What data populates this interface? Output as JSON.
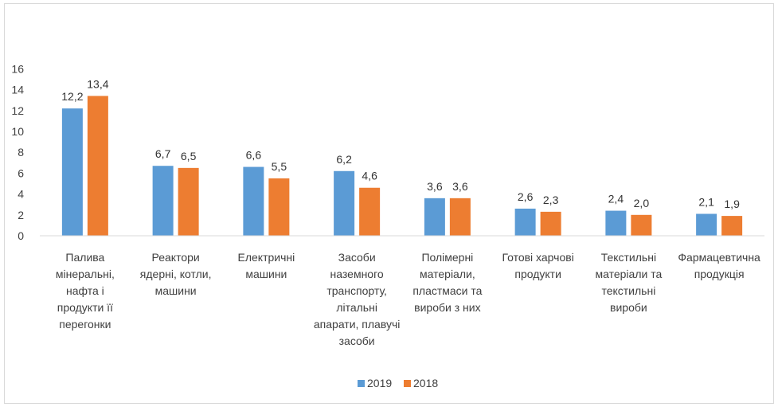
{
  "chart_data": {
    "type": "bar",
    "title": "",
    "xlabel": "",
    "ylabel": "",
    "ylim": [
      0,
      16
    ],
    "yticks": [
      0,
      2,
      4,
      6,
      8,
      10,
      12,
      14,
      16
    ],
    "grid": false,
    "legend_position": "bottom",
    "categories": [
      [
        "Палива",
        "мінеральні,",
        "нафта і",
        "продукти її",
        "перегонки"
      ],
      [
        "Реактори",
        "ядерні, котли,",
        "машини"
      ],
      [
        "Електричні",
        "машини"
      ],
      [
        "Засоби",
        "наземного",
        "транспорту,",
        "літальні",
        "апарати, плавучі",
        "засоби"
      ],
      [
        "Полімерні",
        "матеріали,",
        "пластмаси та",
        "вироби з них"
      ],
      [
        "Готові харчові",
        "продукти"
      ],
      [
        "Текстильні",
        "матеріали та",
        "текстильні",
        "вироби"
      ],
      [
        "Фармацевтична",
        "продукція"
      ]
    ],
    "series": [
      {
        "name": "2019",
        "color": "#5B9BD5",
        "values": [
          12.2,
          6.7,
          6.6,
          6.2,
          3.6,
          2.6,
          2.4,
          2.1
        ],
        "labels": [
          "12,2",
          "6,7",
          "6,6",
          "6,2",
          "3,6",
          "2,6",
          "2,4",
          "2,1"
        ]
      },
      {
        "name": "2018",
        "color": "#ED7D31",
        "values": [
          13.4,
          6.5,
          5.5,
          4.6,
          3.6,
          2.3,
          2.0,
          1.9
        ],
        "labels": [
          "13,4",
          "6,5",
          "5,5",
          "4,6",
          "3,6",
          "2,3",
          "2,0",
          "1,9"
        ]
      }
    ]
  }
}
